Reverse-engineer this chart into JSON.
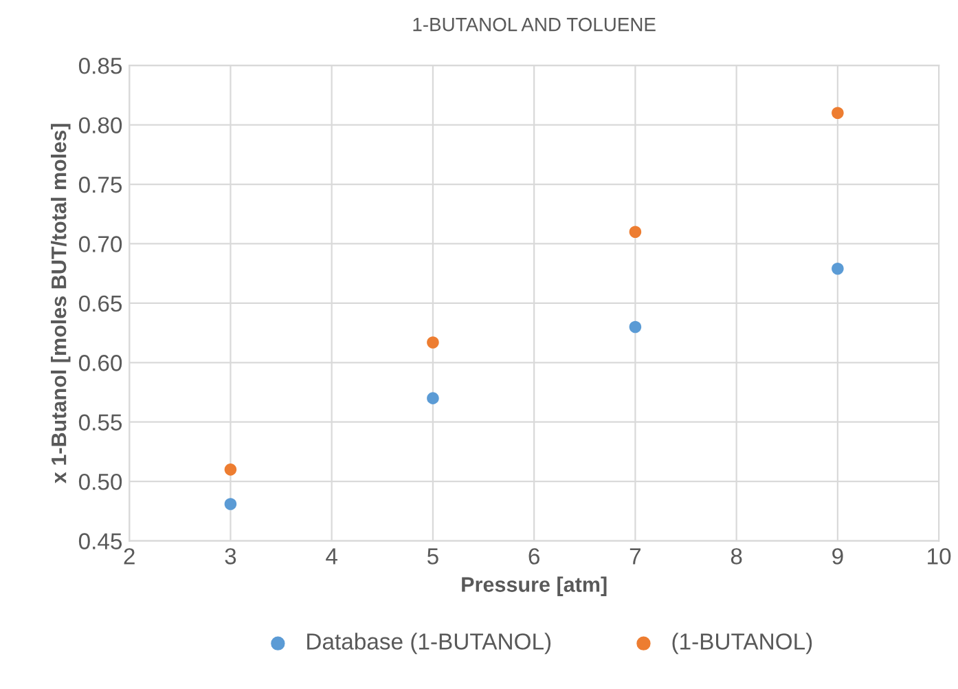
{
  "chart_data": {
    "type": "scatter",
    "title": "1-BUTANOL AND TOLUENE",
    "xlabel": "Pressure [atm]",
    "ylabel": "x 1-Butanol [moles BUT/total moles]",
    "x": [
      3,
      5,
      7,
      9
    ],
    "series": [
      {
        "name": "Database (1-BUTANOL)",
        "color": "#5b9bd5",
        "values": [
          0.481,
          0.57,
          0.63,
          0.679
        ]
      },
      {
        "name": "(1-BUTANOL)",
        "color": "#ed7d31",
        "values": [
          0.51,
          0.617,
          0.71,
          0.81
        ]
      }
    ],
    "xlim": [
      2,
      10
    ],
    "xticks": [
      2,
      3,
      4,
      5,
      6,
      7,
      8,
      9,
      10
    ],
    "ylim": [
      0.45,
      0.85
    ],
    "yticks": [
      {
        "value": 0.45,
        "label": "0.45"
      },
      {
        "value": 0.5,
        "label": "0.50"
      },
      {
        "value": 0.55,
        "label": "0.55"
      },
      {
        "value": 0.6,
        "label": "0.60"
      },
      {
        "value": 0.65,
        "label": "0.65"
      },
      {
        "value": 0.7,
        "label": "0.70"
      },
      {
        "value": 0.75,
        "label": "0.75"
      },
      {
        "value": 0.8,
        "label": "0.80"
      },
      {
        "value": 0.85,
        "label": "0.85"
      }
    ],
    "grid": true,
    "legend": "bottom",
    "marker": "circle"
  }
}
